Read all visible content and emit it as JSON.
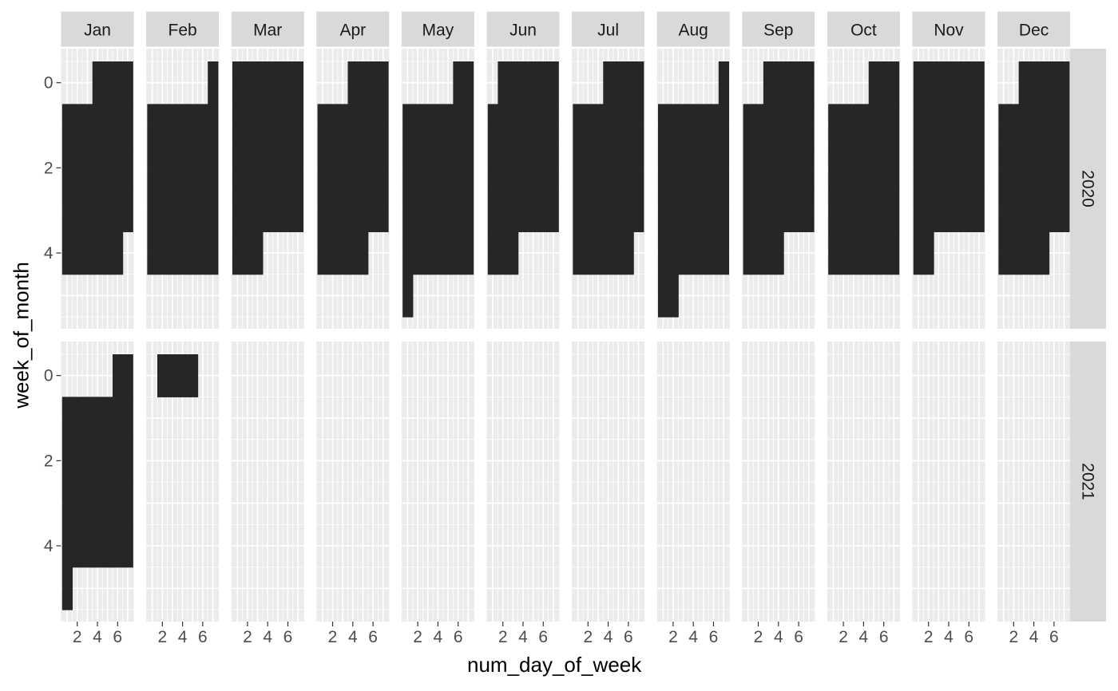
{
  "chart_data": {
    "type": "heatmap",
    "xlabel": "num_day_of_week",
    "ylabel": "week_of_month",
    "facet_cols": [
      "Jan",
      "Feb",
      "Mar",
      "Apr",
      "May",
      "Jun",
      "Jul",
      "Aug",
      "Sep",
      "Oct",
      "Nov",
      "Dec"
    ],
    "facet_rows": [
      "2020",
      "2021"
    ],
    "x_ticks": [
      2,
      4,
      6
    ],
    "y_ticks": [
      0,
      2,
      4
    ],
    "xlim": [
      0.4,
      7.6
    ],
    "ylim": [
      5.78,
      -0.8
    ],
    "y_reversed": true,
    "grid": true,
    "colors": {
      "panel_bg": "#ebebeb",
      "grid": "#ffffff",
      "strip_bg": "#d9d9d9",
      "tile": "#262626"
    },
    "panels": [
      {
        "year": "2020",
        "month": "Jan",
        "weeks": [
          [
            4,
            5,
            6,
            7
          ],
          [
            1,
            2,
            3,
            4,
            5,
            6,
            7
          ],
          [
            1,
            2,
            3,
            4,
            5,
            6,
            7
          ],
          [
            1,
            2,
            3,
            4,
            5,
            6,
            7
          ],
          [
            1,
            2,
            3,
            4,
            5,
            6
          ],
          []
        ]
      },
      {
        "year": "2020",
        "month": "Feb",
        "weeks": [
          [
            7
          ],
          [
            1,
            2,
            3,
            4,
            5,
            6,
            7
          ],
          [
            1,
            2,
            3,
            4,
            5,
            6,
            7
          ],
          [
            1,
            2,
            3,
            4,
            5,
            6,
            7
          ],
          [
            1,
            2,
            3,
            4,
            5,
            6,
            7
          ],
          []
        ]
      },
      {
        "year": "2020",
        "month": "Mar",
        "weeks": [
          [
            1,
            2,
            3,
            4,
            5,
            6,
            7
          ],
          [
            1,
            2,
            3,
            4,
            5,
            6,
            7
          ],
          [
            1,
            2,
            3,
            4,
            5,
            6,
            7
          ],
          [
            1,
            2,
            3,
            4,
            5,
            6,
            7
          ],
          [
            1,
            2,
            3
          ],
          []
        ]
      },
      {
        "year": "2020",
        "month": "Apr",
        "weeks": [
          [
            4,
            5,
            6,
            7
          ],
          [
            1,
            2,
            3,
            4,
            5,
            6,
            7
          ],
          [
            1,
            2,
            3,
            4,
            5,
            6,
            7
          ],
          [
            1,
            2,
            3,
            4,
            5,
            6,
            7
          ],
          [
            1,
            2,
            3,
            4,
            5
          ],
          []
        ]
      },
      {
        "year": "2020",
        "month": "May",
        "weeks": [
          [
            6,
            7
          ],
          [
            1,
            2,
            3,
            4,
            5,
            6,
            7
          ],
          [
            1,
            2,
            3,
            4,
            5,
            6,
            7
          ],
          [
            1,
            2,
            3,
            4,
            5,
            6,
            7
          ],
          [
            1,
            2,
            3,
            4,
            5,
            6,
            7
          ],
          [
            1
          ]
        ]
      },
      {
        "year": "2020",
        "month": "Jun",
        "weeks": [
          [
            2,
            3,
            4,
            5,
            6,
            7
          ],
          [
            1,
            2,
            3,
            4,
            5,
            6,
            7
          ],
          [
            1,
            2,
            3,
            4,
            5,
            6,
            7
          ],
          [
            1,
            2,
            3,
            4,
            5,
            6,
            7
          ],
          [
            1,
            2,
            3
          ],
          []
        ]
      },
      {
        "year": "2020",
        "month": "Jul",
        "weeks": [
          [
            4,
            5,
            6,
            7
          ],
          [
            1,
            2,
            3,
            4,
            5,
            6,
            7
          ],
          [
            1,
            2,
            3,
            4,
            5,
            6,
            7
          ],
          [
            1,
            2,
            3,
            4,
            5,
            6,
            7
          ],
          [
            1,
            2,
            3,
            4,
            5,
            6
          ],
          []
        ]
      },
      {
        "year": "2020",
        "month": "Aug",
        "weeks": [
          [
            7
          ],
          [
            1,
            2,
            3,
            4,
            5,
            6,
            7
          ],
          [
            1,
            2,
            3,
            4,
            5,
            6,
            7
          ],
          [
            1,
            2,
            3,
            4,
            5,
            6,
            7
          ],
          [
            1,
            2,
            3,
            4,
            5,
            6,
            7
          ],
          [
            1,
            2
          ]
        ]
      },
      {
        "year": "2020",
        "month": "Sep",
        "weeks": [
          [
            3,
            4,
            5,
            6,
            7
          ],
          [
            1,
            2,
            3,
            4,
            5,
            6,
            7
          ],
          [
            1,
            2,
            3,
            4,
            5,
            6,
            7
          ],
          [
            1,
            2,
            3,
            4,
            5,
            6,
            7
          ],
          [
            1,
            2,
            3,
            4
          ],
          []
        ]
      },
      {
        "year": "2020",
        "month": "Oct",
        "weeks": [
          [
            5,
            6,
            7
          ],
          [
            1,
            2,
            3,
            4,
            5,
            6,
            7
          ],
          [
            1,
            2,
            3,
            4,
            5,
            6,
            7
          ],
          [
            1,
            2,
            3,
            4,
            5,
            6,
            7
          ],
          [
            1,
            2,
            3,
            4,
            5,
            6,
            7
          ],
          []
        ]
      },
      {
        "year": "2020",
        "month": "Nov",
        "weeks": [
          [
            1,
            2,
            3,
            4,
            5,
            6,
            7
          ],
          [
            1,
            2,
            3,
            4,
            5,
            6,
            7
          ],
          [
            1,
            2,
            3,
            4,
            5,
            6,
            7
          ],
          [
            1,
            2,
            3,
            4,
            5,
            6,
            7
          ],
          [
            1,
            2
          ],
          []
        ]
      },
      {
        "year": "2020",
        "month": "Dec",
        "weeks": [
          [
            3,
            4,
            5,
            6,
            7
          ],
          [
            1,
            2,
            3,
            4,
            5,
            6,
            7
          ],
          [
            1,
            2,
            3,
            4,
            5,
            6,
            7
          ],
          [
            1,
            2,
            3,
            4,
            5,
            6,
            7
          ],
          [
            1,
            2,
            3,
            4,
            5
          ],
          []
        ]
      },
      {
        "year": "2021",
        "month": "Jan",
        "weeks": [
          [
            6,
            7
          ],
          [
            1,
            2,
            3,
            4,
            5,
            6,
            7
          ],
          [
            1,
            2,
            3,
            4,
            5,
            6,
            7
          ],
          [
            1,
            2,
            3,
            4,
            5,
            6,
            7
          ],
          [
            1,
            2,
            3,
            4,
            5,
            6,
            7
          ],
          [
            1
          ]
        ]
      },
      {
        "year": "2021",
        "month": "Feb",
        "weeks": [
          [
            2,
            3,
            4,
            5
          ],
          [],
          [],
          [],
          [],
          []
        ]
      },
      {
        "year": "2021",
        "month": "Mar",
        "weeks": [
          [],
          [],
          [],
          [],
          [],
          []
        ]
      },
      {
        "year": "2021",
        "month": "Apr",
        "weeks": [
          [],
          [],
          [],
          [],
          [],
          []
        ]
      },
      {
        "year": "2021",
        "month": "May",
        "weeks": [
          [],
          [],
          [],
          [],
          [],
          []
        ]
      },
      {
        "year": "2021",
        "month": "Jun",
        "weeks": [
          [],
          [],
          [],
          [],
          [],
          []
        ]
      },
      {
        "year": "2021",
        "month": "Jul",
        "weeks": [
          [],
          [],
          [],
          [],
          [],
          []
        ]
      },
      {
        "year": "2021",
        "month": "Aug",
        "weeks": [
          [],
          [],
          [],
          [],
          [],
          []
        ]
      },
      {
        "year": "2021",
        "month": "Sep",
        "weeks": [
          [],
          [],
          [],
          [],
          [],
          []
        ]
      },
      {
        "year": "2021",
        "month": "Oct",
        "weeks": [
          [],
          [],
          [],
          [],
          [],
          []
        ]
      },
      {
        "year": "2021",
        "month": "Nov",
        "weeks": [
          [],
          [],
          [],
          [],
          [],
          []
        ]
      },
      {
        "year": "2021",
        "month": "Dec",
        "weeks": [
          [],
          [],
          [],
          [],
          [],
          []
        ]
      }
    ]
  }
}
